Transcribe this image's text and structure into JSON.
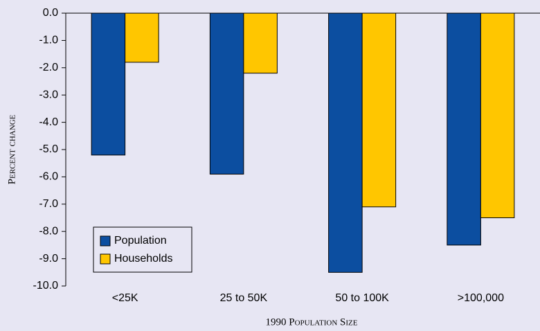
{
  "chart_data": {
    "type": "bar",
    "x_label": "1990 Population Size",
    "y_label": "Percent change",
    "categories": [
      "<25K",
      "25 to 50K",
      "50 to 100K",
      ">100,000"
    ],
    "series": [
      {
        "name": "Population",
        "color": "#0c4ea0",
        "values": [
          -5.2,
          -5.9,
          -9.5,
          -8.5
        ]
      },
      {
        "name": "Households",
        "color": "#ffc600",
        "values": [
          -1.8,
          -2.2,
          -7.1,
          -7.5
        ]
      }
    ],
    "ylim": [
      -10,
      0
    ],
    "yticks": [
      {
        "value": 0,
        "label": "0.0"
      },
      {
        "value": -1,
        "label": "-1.0"
      },
      {
        "value": -2,
        "label": "-2.0"
      },
      {
        "value": -3,
        "label": "-3.0"
      },
      {
        "value": -4,
        "label": "-4.0"
      },
      {
        "value": -5,
        "label": "-5.0"
      },
      {
        "value": -6,
        "label": "-6.0"
      },
      {
        "value": -7,
        "label": "-7.0"
      },
      {
        "value": -8,
        "label": "-8.0"
      },
      {
        "value": -9,
        "label": "-9.0"
      },
      {
        "value": -10,
        "label": "-10.0"
      }
    ],
    "grid": false,
    "legend": "lower left"
  }
}
